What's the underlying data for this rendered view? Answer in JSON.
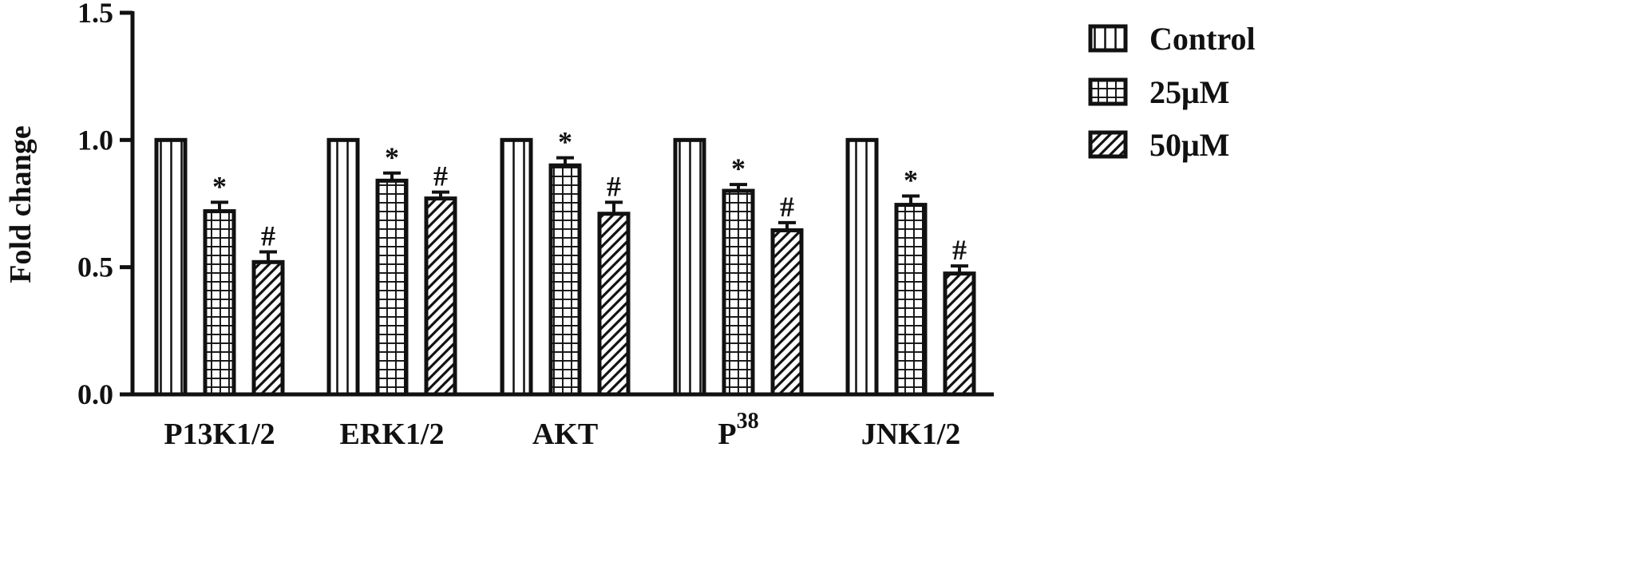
{
  "chart_data": {
    "type": "bar",
    "title": "",
    "xlabel": "",
    "ylabel": "Fold change",
    "ylim": [
      0,
      1.5
    ],
    "yticks": [
      "0.0",
      "0.5",
      "1.0",
      "1.5"
    ],
    "categories": [
      "P13K1/2",
      "ERK1/2",
      "AKT",
      "P",
      "JNK1/2"
    ],
    "category_superscripts": [
      "",
      "",
      "",
      "38",
      ""
    ],
    "series": [
      {
        "name": "Control",
        "pattern": "vertical-lines",
        "values": [
          1.0,
          1.0,
          1.0,
          1.0,
          1.0
        ],
        "errors": [
          0,
          0,
          0,
          0,
          0
        ],
        "annotations": [
          "",
          "",
          "",
          "",
          ""
        ]
      },
      {
        "name": "25μM",
        "pattern": "grid",
        "values": [
          0.72,
          0.84,
          0.9,
          0.8,
          0.745
        ],
        "errors": [
          0.035,
          0.03,
          0.03,
          0.025,
          0.035
        ],
        "annotations": [
          "*",
          "*",
          "*",
          "*",
          "*"
        ]
      },
      {
        "name": "50μM",
        "pattern": "diagonal-hatch",
        "values": [
          0.52,
          0.77,
          0.71,
          0.645,
          0.475
        ],
        "errors": [
          0.04,
          0.025,
          0.045,
          0.03,
          0.03
        ],
        "annotations": [
          "#",
          "#",
          "#",
          "#",
          "#"
        ]
      }
    ],
    "grid": false,
    "legend_position": "top-right"
  },
  "colors": {
    "stroke": "#111111",
    "fill": "#ffffff"
  }
}
